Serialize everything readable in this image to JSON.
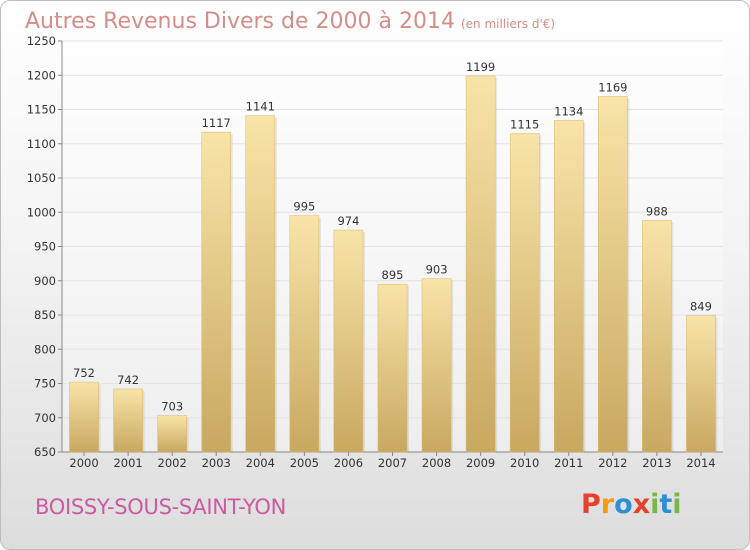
{
  "header": {
    "title": "Autres Revenus Divers de 2000 à 2014",
    "subtitle": "(en milliers d'€)"
  },
  "footer": {
    "place": "BOISSY-SOUS-SAINT-YON",
    "logo": [
      "P",
      "r",
      "o",
      "x",
      "i",
      "t",
      "i"
    ],
    "logo_colors": [
      "#e8402a",
      "#f39c12",
      "#2e8fd6",
      "#e8402a",
      "#7ab648",
      "#2e8fd6",
      "#7ab648"
    ]
  },
  "chart_data": {
    "type": "bar",
    "title": "Autres Revenus Divers de 2000 à 2014",
    "subtitle": "(en milliers d'€)",
    "categories": [
      "2000",
      "2001",
      "2002",
      "2003",
      "2004",
      "2005",
      "2006",
      "2007",
      "2008",
      "2009",
      "2010",
      "2011",
      "2012",
      "2013",
      "2014"
    ],
    "values": [
      752,
      742,
      703,
      1117,
      1141,
      995,
      974,
      895,
      903,
      1199,
      1115,
      1134,
      1169,
      988,
      849
    ],
    "yticks": [
      650,
      700,
      750,
      800,
      850,
      900,
      950,
      1000,
      1050,
      1100,
      1150,
      1200,
      1250
    ],
    "ylim": [
      650,
      1250
    ],
    "grid": true,
    "bar_color": "#ecc978",
    "bar_color_light": "#f8e4a8",
    "bar_color_dark": "#c9a860",
    "grid_color": "#e4e4e4",
    "axis_color": "#888888"
  }
}
